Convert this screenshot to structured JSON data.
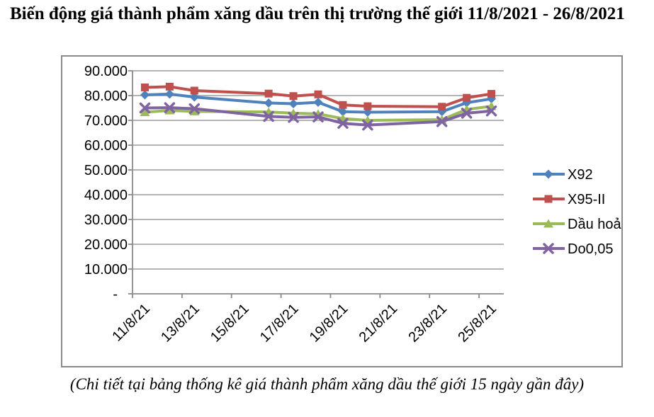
{
  "document": {
    "title": "Biến động giá thành phẩm xăng dầu trên thị trường thế giới 11/8/2021 - 26/8/2021",
    "footer": "(Chi tiết tại bảng thống kê giá thành phẩm xăng dầu thế giới 15 ngày gần đây)"
  },
  "chart_data": {
    "type": "line",
    "title": "",
    "xlabel": "",
    "ylabel": "",
    "grid": true,
    "legend_position": "right",
    "ylim": [
      0,
      90000
    ],
    "colors": {
      "grid": "#9c9c9c",
      "axis": "#8a8a8a",
      "text": "#000000"
    },
    "y_ticks": [
      {
        "label": "90.000",
        "value": 90000
      },
      {
        "label": "80.000",
        "value": 80000
      },
      {
        "label": "70.000",
        "value": 70000
      },
      {
        "label": "60.000",
        "value": 60000
      },
      {
        "label": "50.000",
        "value": 50000
      },
      {
        "label": "40.000",
        "value": 40000
      },
      {
        "label": "30.000",
        "value": 30000
      },
      {
        "label": "20.000",
        "value": 20000
      },
      {
        "label": "10.000",
        "value": 10000
      },
      {
        "label": "-",
        "value": 0
      }
    ],
    "x_ticks": [
      {
        "label": "11/8/21",
        "cat": 0
      },
      {
        "label": "13/8/21",
        "cat": 2
      },
      {
        "label": "15/8/21",
        "cat": 4
      },
      {
        "label": "17/8/21",
        "cat": 6
      },
      {
        "label": "19/8/21",
        "cat": 8
      },
      {
        "label": "21/8/21",
        "cat": 10
      },
      {
        "label": "23/8/21",
        "cat": 12
      },
      {
        "label": "25/8/21",
        "cat": 14
      }
    ],
    "categories": [
      "11/8/21",
      "12/8/21",
      "13/8/21",
      "14/8/21",
      "15/8/21",
      "16/8/21",
      "17/8/21",
      "18/8/21",
      "19/8/21",
      "20/8/21",
      "21/8/21",
      "22/8/21",
      "23/8/21",
      "24/8/21",
      "25/8/21"
    ],
    "series": [
      {
        "name": "X92",
        "color": "#4f81bd",
        "marker": "diamond",
        "values": [
          80300,
          80600,
          79400,
          null,
          null,
          77000,
          76700,
          77300,
          73500,
          73300,
          null,
          null,
          73500,
          77100,
          78700
        ]
      },
      {
        "name": "X95-II",
        "color": "#c0504d",
        "marker": "square",
        "values": [
          83300,
          83600,
          82000,
          null,
          null,
          80800,
          79800,
          80500,
          76200,
          75700,
          null,
          null,
          75500,
          79100,
          80700
        ]
      },
      {
        "name": "Dầu hoả",
        "color": "#9bbb59",
        "marker": "triangle",
        "values": [
          73300,
          74000,
          73600,
          null,
          null,
          73400,
          72900,
          72600,
          70700,
          70000,
          null,
          null,
          70300,
          74400,
          75700
        ]
      },
      {
        "name": "Do0,05",
        "color": "#8064a2",
        "marker": "x",
        "values": [
          75000,
          75100,
          74700,
          null,
          null,
          71600,
          71200,
          71400,
          68800,
          68100,
          null,
          null,
          69500,
          72900,
          73800
        ]
      }
    ]
  }
}
